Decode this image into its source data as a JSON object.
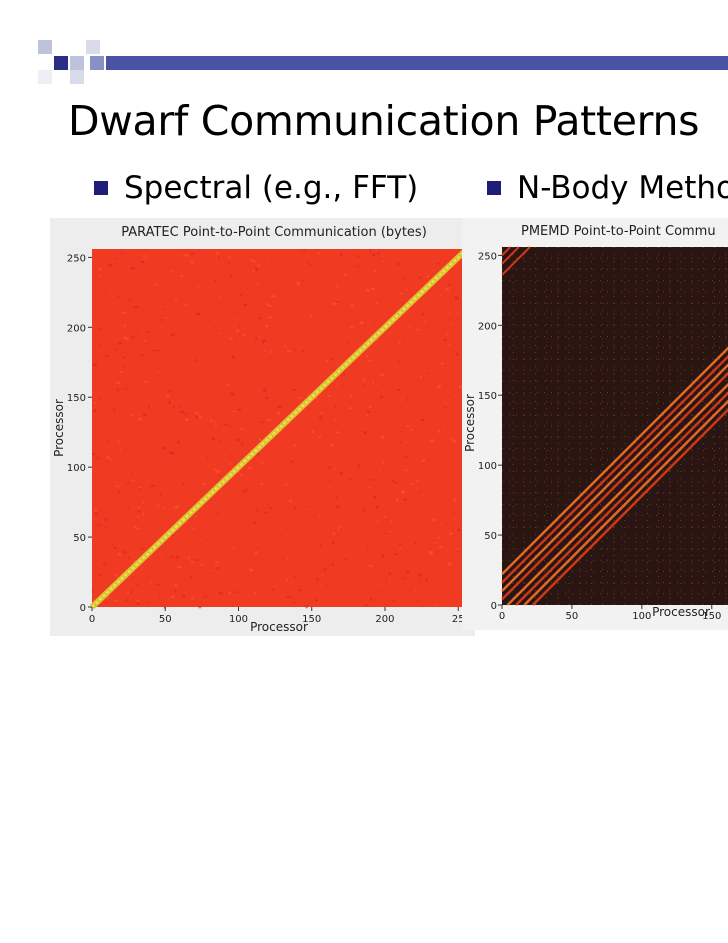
{
  "slide": {
    "title": "Dwarf Communication Patterns",
    "bullets": [
      "Spectral (e.g., FFT)",
      "N-Body Metho"
    ],
    "colors": {
      "title": "#000000",
      "bullet_marker": "#1e1e7a",
      "header_bar": "#4a52a6"
    }
  },
  "chart_data": [
    {
      "type": "heatmap",
      "title": "PARATEC Point-to-Point Communication (bytes)",
      "xlabel": "Processor",
      "ylabel": "Processor",
      "x_ticks": [
        "0",
        "50",
        "100",
        "150",
        "200",
        "25"
      ],
      "y_ticks": [
        "0",
        "50",
        "100",
        "150",
        "200",
        "250"
      ],
      "xlim": [
        0,
        256
      ],
      "ylim": [
        0,
        256
      ],
      "pattern": "all-to-all",
      "background_color": "#f03a22",
      "diagonal_color": "#f2e23a"
    },
    {
      "type": "heatmap",
      "title": "PMEMD Point-to-Point Commu",
      "xlabel": "Processor",
      "ylabel": "Processor",
      "x_ticks": [
        "0",
        "50",
        "100",
        "150"
      ],
      "y_ticks": [
        "0",
        "50",
        "100",
        "150",
        "200",
        "250"
      ],
      "xlim": [
        0,
        256
      ],
      "ylim": [
        0,
        256
      ],
      "pattern": "banded near-diagonal with periodic grid",
      "background_color": "#2a1512",
      "band_color": "#e8401f"
    }
  ]
}
